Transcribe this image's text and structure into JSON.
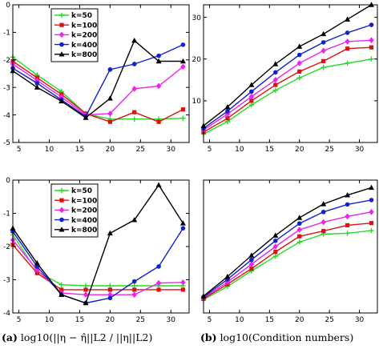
{
  "captions": {
    "a": {
      "tag": "(a)",
      "text": "log10(||η − η̂||L2 / ||η||L2)"
    },
    "b": {
      "tag": "(b)",
      "text": "log10(Condition numbers)"
    }
  },
  "chart_data": [
    {
      "id": "top-left",
      "type": "line",
      "x": [
        4,
        8,
        12,
        16,
        20,
        24,
        28,
        32
      ],
      "xlim": [
        4,
        33
      ],
      "ylim": [
        -5,
        0
      ],
      "xticks": [
        5,
        10,
        15,
        20,
        25,
        30
      ],
      "yticks": [
        -5,
        -4,
        -3,
        -2,
        -1,
        0
      ],
      "legend": "top-left",
      "series": [
        {
          "name": "k=50",
          "color": "#22dd22",
          "marker": "cross",
          "values": [
            -1.9,
            -2.55,
            -3.15,
            -3.95,
            -4.15,
            -4.15,
            -4.15,
            -4.12
          ]
        },
        {
          "name": "k=100",
          "color": "#dd1111",
          "marker": "square",
          "values": [
            -2.05,
            -2.65,
            -3.25,
            -3.95,
            -4.25,
            -3.9,
            -4.25,
            -3.8
          ]
        },
        {
          "name": "k=200",
          "color": "#ee22ee",
          "marker": "diamond",
          "values": [
            -2.15,
            -2.75,
            -3.35,
            -4.0,
            -3.95,
            -3.05,
            -2.95,
            -2.25
          ]
        },
        {
          "name": "k=400",
          "color": "#1122cc",
          "marker": "circle",
          "values": [
            -2.3,
            -2.85,
            -3.45,
            -4.05,
            -2.35,
            -2.15,
            -1.85,
            -1.45
          ]
        },
        {
          "name": "k=800",
          "color": "#000000",
          "marker": "triangle",
          "values": [
            -2.4,
            -3.0,
            -3.5,
            -4.1,
            -3.4,
            -1.3,
            -2.05,
            -2.05
          ]
        }
      ]
    },
    {
      "id": "top-right",
      "type": "line",
      "x": [
        4,
        8,
        12,
        16,
        20,
        24,
        28,
        32
      ],
      "xlim": [
        4,
        33
      ],
      "ylim": [
        0,
        33
      ],
      "xticks": [
        5,
        10,
        15,
        20,
        25,
        30
      ],
      "yticks": [
        10,
        20,
        30
      ],
      "series": [
        {
          "name": "k=50",
          "color": "#22dd22",
          "marker": "cross",
          "values": [
            2.0,
            5.0,
            9.0,
            12.5,
            15.5,
            18.0,
            19.0,
            20.0
          ]
        },
        {
          "name": "k=100",
          "color": "#dd1111",
          "marker": "square",
          "values": [
            2.5,
            5.8,
            10.0,
            13.8,
            17.0,
            19.5,
            22.5,
            22.8
          ]
        },
        {
          "name": "k=200",
          "color": "#ee22ee",
          "marker": "diamond",
          "values": [
            3.0,
            6.8,
            11.0,
            15.0,
            19.0,
            22.0,
            24.2,
            24.5
          ]
        },
        {
          "name": "k=400",
          "color": "#1122cc",
          "marker": "circle",
          "values": [
            3.4,
            7.5,
            12.2,
            16.8,
            21.0,
            24.0,
            26.3,
            28.2
          ]
        },
        {
          "name": "k=800",
          "color": "#000000",
          "marker": "triangle",
          "values": [
            4.0,
            8.5,
            13.8,
            18.8,
            23.0,
            26.0,
            29.5,
            33.0
          ]
        }
      ]
    },
    {
      "id": "bottom-left",
      "type": "line",
      "x": [
        4,
        8,
        12,
        16,
        20,
        24,
        28,
        32
      ],
      "xlim": [
        4,
        33
      ],
      "ylim": [
        -4,
        0
      ],
      "xticks": [
        5,
        10,
        15,
        20,
        25,
        30
      ],
      "yticks": [
        -4,
        -3,
        -2,
        -1,
        0
      ],
      "legend": "top-left",
      "series": [
        {
          "name": "k=50",
          "color": "#22dd22",
          "marker": "cross",
          "values": [
            -1.65,
            -2.75,
            -3.15,
            -3.18,
            -3.18,
            -3.18,
            -3.18,
            -3.18
          ]
        },
        {
          "name": "k=100",
          "color": "#dd1111",
          "marker": "square",
          "values": [
            -1.95,
            -2.8,
            -3.3,
            -3.3,
            -3.3,
            -3.3,
            -3.3,
            -3.3
          ]
        },
        {
          "name": "k=200",
          "color": "#ee22ee",
          "marker": "diamond",
          "values": [
            -1.8,
            -2.7,
            -3.4,
            -3.45,
            -3.45,
            -3.45,
            -3.1,
            -3.08
          ]
        },
        {
          "name": "k=400",
          "color": "#1122cc",
          "marker": "circle",
          "values": [
            -1.55,
            -2.6,
            -3.45,
            -3.7,
            -3.55,
            -3.05,
            -2.6,
            -1.45
          ]
        },
        {
          "name": "k=800",
          "color": "#000000",
          "marker": "triangle",
          "values": [
            -1.45,
            -2.5,
            -3.45,
            -3.7,
            -1.6,
            -1.2,
            -0.15,
            -1.3
          ]
        }
      ]
    },
    {
      "id": "bottom-right",
      "type": "line",
      "x": [
        4,
        8,
        12,
        16,
        20,
        24,
        28,
        32
      ],
      "xlim": [
        4,
        33
      ],
      "ylim": [
        0,
        30
      ],
      "xticks": [
        5,
        10,
        15,
        20,
        25,
        30
      ],
      "yticks": [],
      "series": [
        {
          "name": "k=50",
          "color": "#22dd22",
          "marker": "cross",
          "values": [
            3.0,
            6.0,
            9.5,
            12.8,
            16.0,
            17.8,
            18.0,
            18.6
          ]
        },
        {
          "name": "k=100",
          "color": "#dd1111",
          "marker": "square",
          "values": [
            3.2,
            6.5,
            10.0,
            13.8,
            17.3,
            18.5,
            19.8,
            20.3
          ]
        },
        {
          "name": "k=200",
          "color": "#ee22ee",
          "marker": "diamond",
          "values": [
            3.4,
            7.0,
            11.0,
            15.0,
            18.8,
            20.5,
            21.8,
            22.8
          ]
        },
        {
          "name": "k=400",
          "color": "#1122cc",
          "marker": "circle",
          "values": [
            3.6,
            7.6,
            12.0,
            16.3,
            20.2,
            22.8,
            24.5,
            25.5
          ]
        },
        {
          "name": "k=800",
          "color": "#000000",
          "marker": "triangle",
          "values": [
            3.8,
            8.2,
            13.0,
            17.5,
            21.5,
            24.6,
            26.6,
            28.3
          ]
        }
      ]
    }
  ]
}
